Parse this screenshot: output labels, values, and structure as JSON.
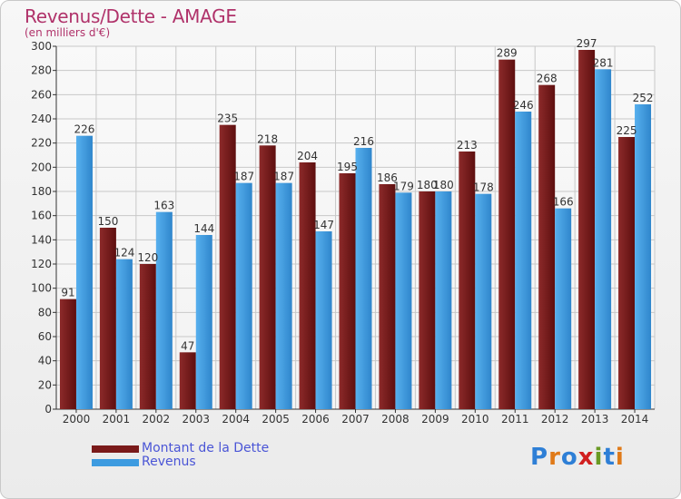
{
  "header": {
    "title": "Revenus/Dette - AMAGE",
    "subtitle": "(en milliers d'€)"
  },
  "legend": {
    "items": [
      {
        "label": "Montant de la Dette",
        "color": "#7a1a1a"
      },
      {
        "label": "Revenus",
        "color": "#3d9be0"
      }
    ]
  },
  "logo": {
    "text": "Proxiti",
    "colors": [
      "#2e7fd6",
      "#e07a18",
      "#2e7fd6",
      "#d11f1f",
      "#6a9a24",
      "#2e7fd6",
      "#e07a18"
    ]
  },
  "colors": {
    "debt": "#7a1a1a",
    "revenue": "#3d9be0",
    "grid": "#c8c8c8",
    "axis": "#333333",
    "title": "#b0326a"
  },
  "chart_data": {
    "type": "bar",
    "title": "Revenus/Dette - AMAGE",
    "subtitle": "(en milliers d'€)",
    "categories": [
      "2000",
      "2001",
      "2002",
      "2003",
      "2004",
      "2005",
      "2006",
      "2007",
      "2008",
      "2009",
      "2010",
      "2011",
      "2012",
      "2013",
      "2014"
    ],
    "series": [
      {
        "name": "Montant de la Dette",
        "values": [
          91,
          150,
          120,
          47,
          235,
          218,
          204,
          195,
          186,
          180,
          213,
          289,
          268,
          297,
          225
        ]
      },
      {
        "name": "Revenus",
        "values": [
          226,
          124,
          163,
          144,
          187,
          187,
          147,
          216,
          179,
          180,
          178,
          246,
          166,
          281,
          252
        ]
      }
    ],
    "ylim": [
      0,
      300
    ],
    "yticks": [
      0,
      20,
      40,
      60,
      80,
      100,
      120,
      140,
      160,
      180,
      200,
      220,
      240,
      260,
      280,
      300
    ],
    "grid": true,
    "legend_position": "bottom-left"
  }
}
